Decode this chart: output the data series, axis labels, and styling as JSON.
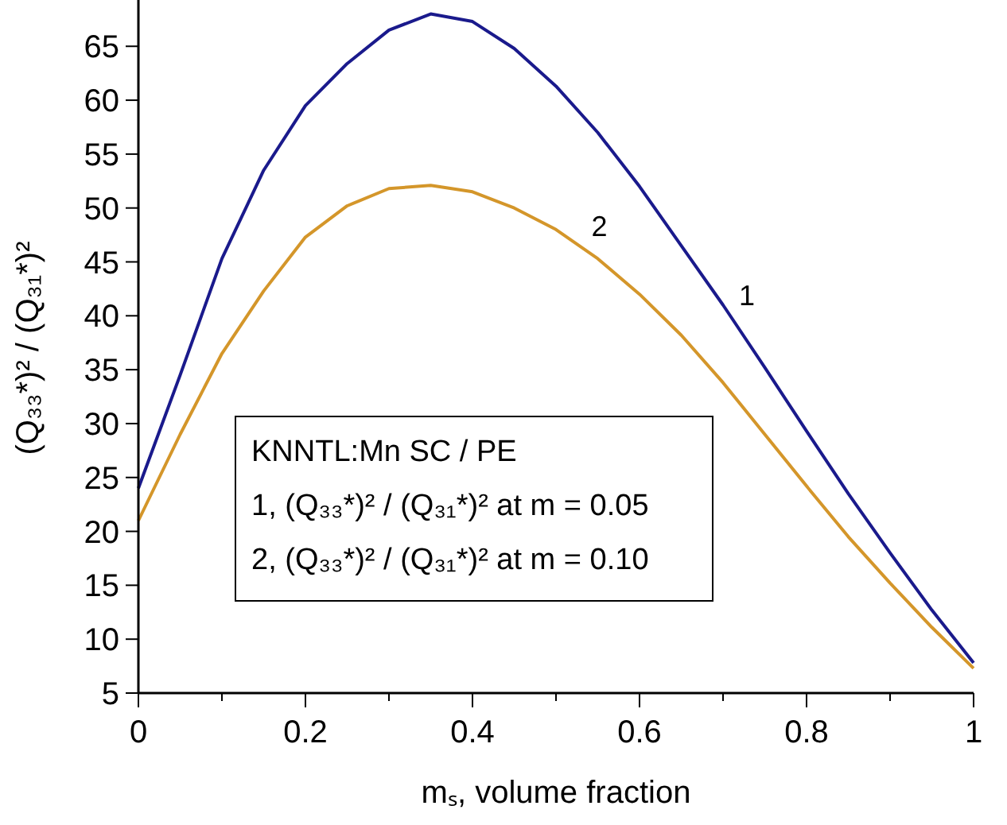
{
  "chart_data": {
    "type": "line",
    "xlabel": "mₛ, volume fraction",
    "ylabel": "(Q₃₃*)² / (Q₃₁*)²",
    "annotations": [
      "KNNTL:Mn SC / PE",
      "1, (Q₃₃*)² / (Q₃₁*)² at m = 0.05",
      "2, (Q₃₃*)² / (Q₃₁*)² at m = 0.10"
    ],
    "x": [
      0,
      0.05,
      0.1,
      0.15,
      0.2,
      0.25,
      0.3,
      0.35,
      0.4,
      0.45,
      0.5,
      0.55,
      0.6,
      0.65,
      0.7,
      0.75,
      0.8,
      0.85,
      0.9,
      0.95,
      1
    ],
    "series": [
      {
        "name": "1",
        "color": "#1a1a8c",
        "values": [
          24,
          34.5,
          45.3,
          53.5,
          59.5,
          63.4,
          66.5,
          68,
          67.3,
          64.8,
          61.3,
          57,
          52,
          46.5,
          41,
          35.2,
          29.3,
          23.5,
          18,
          12.7,
          7.8
        ]
      },
      {
        "name": "2",
        "color": "#d4962a",
        "values": [
          21,
          29,
          36.5,
          42.3,
          47.3,
          50.2,
          51.8,
          52.1,
          51.5,
          50,
          48,
          45.3,
          42,
          38.2,
          33.8,
          29,
          24.2,
          19.5,
          15.2,
          11.1,
          7.3
        ]
      }
    ],
    "xlim": [
      0,
      1
    ],
    "xticks": [
      0,
      {
        "value": 0.1,
        "label": null
      },
      0.2,
      {
        "value": 0.3,
        "label": null
      },
      0.4,
      {
        "value": 0.5,
        "label": null
      },
      0.6,
      {
        "value": 0.7,
        "label": null
      },
      0.8,
      {
        "value": 0.9,
        "label": null
      },
      1
    ],
    "ylim": [
      5,
      69
    ],
    "yticks": [
      5,
      10,
      15,
      20,
      25,
      30,
      35,
      40,
      45,
      50,
      55,
      60,
      65
    ],
    "grid": false,
    "marker": "none",
    "line_style": "solid"
  }
}
